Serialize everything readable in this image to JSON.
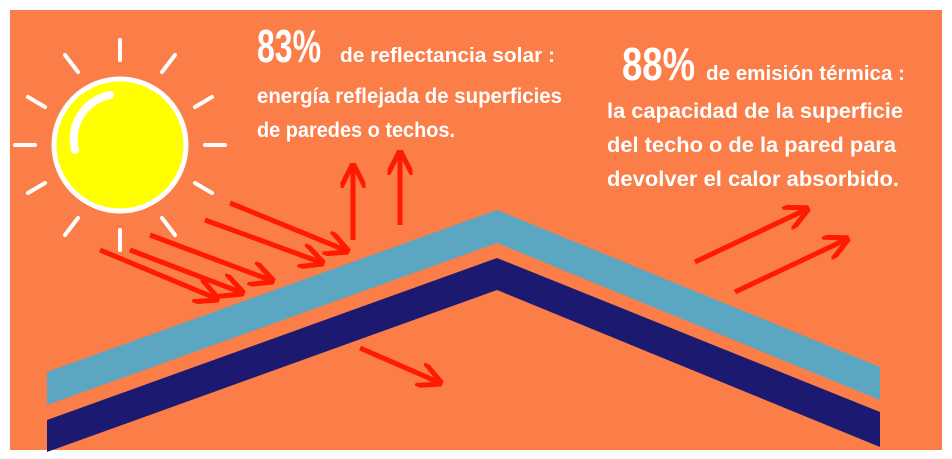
{
  "left_note": {
    "value": "83%",
    "heading": "de reflectancia solar :",
    "lines": [
      "energía reflejada de superficies",
      "de paredes o techos."
    ]
  },
  "right_note": {
    "value": "88%",
    "heading": "de emisión térmica :",
    "lines": [
      "la capacidad de la superficie",
      "del techo o de la pared para",
      "devolver el calor absorbido."
    ]
  }
}
